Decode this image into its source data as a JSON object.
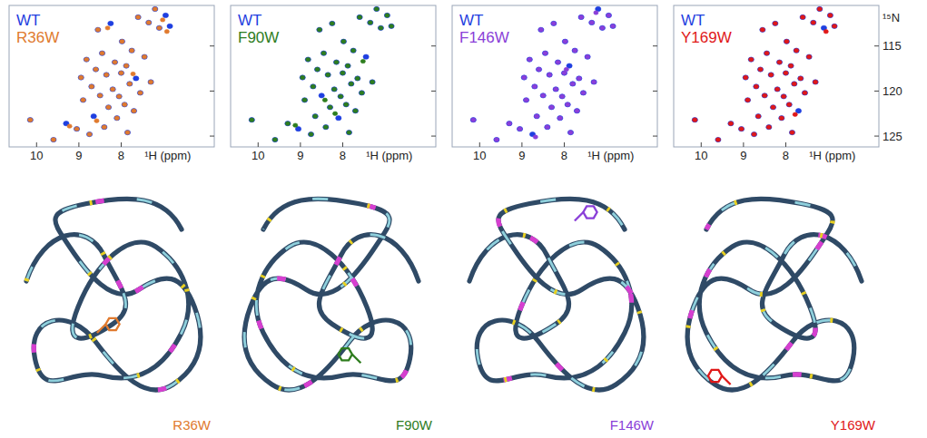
{
  "chart_data": [
    {
      "type": "scatter",
      "xlabel": "¹H (ppm)",
      "xlim": [
        10.65,
        5.8
      ],
      "ylim": [
        110.5,
        126.2
      ],
      "xticks": [
        10,
        9,
        8
      ],
      "yticks": [
        115,
        120,
        125
      ],
      "legend": "upper left",
      "tick_labels": "x",
      "marker": "circle",
      "series": [
        {
          "name": "WT",
          "color": "#1f3fe0",
          "x": [
            10.15,
            9.6,
            9.3,
            9.05,
            8.95,
            8.9,
            8.82,
            8.75,
            8.7,
            8.65,
            8.6,
            8.55,
            8.5,
            8.45,
            8.4,
            8.35,
            8.3,
            8.25,
            8.2,
            8.15,
            8.1,
            8.05,
            8.0,
            7.98,
            7.92,
            7.88,
            7.85,
            7.8,
            7.75,
            7.7,
            7.65,
            7.6,
            7.55,
            7.45,
            7.35,
            7.3,
            7.2,
            7.1,
            6.95,
            6.85
          ],
          "values": [
            123.2,
            125.4,
            123.6,
            124.2,
            118.5,
            121.0,
            116.5,
            124.8,
            119.5,
            122.8,
            117.6,
            113.2,
            120.5,
            115.8,
            124.0,
            118.2,
            121.8,
            112.5,
            119.8,
            116.8,
            123.0,
            120.6,
            118.0,
            114.5,
            121.5,
            117.2,
            124.6,
            119.2,
            115.5,
            122.2,
            118.6,
            111.8,
            120.2,
            116.2,
            112.4,
            119.0,
            110.9,
            113.0,
            111.6,
            112.8
          ]
        },
        {
          "name": "R36W",
          "color": "#e07a2e",
          "x": [
            10.15,
            9.6,
            9.22,
            9.05,
            8.95,
            8.9,
            8.82,
            8.75,
            8.7,
            8.58,
            8.6,
            8.55,
            8.5,
            8.45,
            8.4,
            8.35,
            8.3,
            8.32,
            8.2,
            8.15,
            8.1,
            8.05,
            8.0,
            7.98,
            7.92,
            7.88,
            7.85,
            7.8,
            7.75,
            7.7,
            7.72,
            7.6,
            7.55,
            7.45,
            7.35,
            7.3,
            7.2,
            7.1,
            7.02,
            6.92
          ],
          "values": [
            123.2,
            125.4,
            123.9,
            124.2,
            118.5,
            121.0,
            116.5,
            124.8,
            119.5,
            123.3,
            117.6,
            113.2,
            120.5,
            115.8,
            124.0,
            118.2,
            121.8,
            113.0,
            119.8,
            116.8,
            123.0,
            120.6,
            118.0,
            114.5,
            121.5,
            117.2,
            124.6,
            119.2,
            115.5,
            122.2,
            118.1,
            111.8,
            120.2,
            116.2,
            112.4,
            119.0,
            110.9,
            113.0,
            112.1,
            113.4
          ]
        }
      ]
    },
    {
      "type": "scatter",
      "xlabel": "¹H (ppm)",
      "xlim": [
        10.65,
        5.8
      ],
      "ylim": [
        110.5,
        126.2
      ],
      "xticks": [
        10,
        9,
        8
      ],
      "yticks": [
        115,
        120,
        125
      ],
      "legend": "upper left",
      "tick_labels": "x",
      "marker": "circle",
      "series": [
        {
          "name": "WT",
          "color": "#1f3fe0",
          "x": [
            10.15,
            9.6,
            9.3,
            9.05,
            8.95,
            8.9,
            8.82,
            8.75,
            8.7,
            8.65,
            8.6,
            8.55,
            8.5,
            8.45,
            8.4,
            8.35,
            8.3,
            8.25,
            8.2,
            8.15,
            8.1,
            8.05,
            8.0,
            7.98,
            7.92,
            7.88,
            7.85,
            7.8,
            7.75,
            7.7,
            7.65,
            7.6,
            7.55,
            7.45,
            7.35,
            7.3,
            7.2,
            7.1,
            6.95,
            6.85
          ],
          "values": [
            123.2,
            125.4,
            123.6,
            124.2,
            118.5,
            121.0,
            116.5,
            124.8,
            119.5,
            122.8,
            117.6,
            113.2,
            120.5,
            115.8,
            124.0,
            118.2,
            121.8,
            112.5,
            119.8,
            116.8,
            123.0,
            120.6,
            118.0,
            114.5,
            121.5,
            117.2,
            124.6,
            119.2,
            115.5,
            122.2,
            118.6,
            111.8,
            120.2,
            116.2,
            112.4,
            119.0,
            110.9,
            113.0,
            111.6,
            112.8
          ]
        },
        {
          "name": "F90W",
          "color": "#2e7d1e",
          "x": [
            10.15,
            9.6,
            9.3,
            9.12,
            8.95,
            8.9,
            8.82,
            8.75,
            8.7,
            8.65,
            8.6,
            8.55,
            8.42,
            8.45,
            8.4,
            8.35,
            8.3,
            8.25,
            8.2,
            8.15,
            8.18,
            8.05,
            8.0,
            7.98,
            7.92,
            7.88,
            7.85,
            7.8,
            7.75,
            7.7,
            7.65,
            7.6,
            7.55,
            7.52,
            7.35,
            7.3,
            7.2,
            7.1,
            6.95,
            6.85
          ],
          "values": [
            123.2,
            125.4,
            123.6,
            123.8,
            118.5,
            121.0,
            116.5,
            124.8,
            119.5,
            122.8,
            117.6,
            113.2,
            121.0,
            115.8,
            124.0,
            118.2,
            121.8,
            112.5,
            119.8,
            116.8,
            122.5,
            120.6,
            118.0,
            114.5,
            121.5,
            117.2,
            124.6,
            119.2,
            115.5,
            122.2,
            118.6,
            111.8,
            120.2,
            116.7,
            112.4,
            119.0,
            110.9,
            113.0,
            111.6,
            112.8
          ]
        }
      ]
    },
    {
      "type": "scatter",
      "xlabel": "¹H (ppm)",
      "xlim": [
        10.65,
        5.8
      ],
      "ylim": [
        110.5,
        126.2
      ],
      "xticks": [
        10,
        9,
        8
      ],
      "yticks": [
        115,
        120,
        125
      ],
      "legend": "upper left",
      "tick_labels": "x",
      "marker": "circle",
      "series": [
        {
          "name": "WT",
          "color": "#1f3fe0",
          "x": [
            10.15,
            9.6,
            9.3,
            9.05,
            8.95,
            8.9,
            8.82,
            8.75,
            8.7,
            8.65,
            8.6,
            8.55,
            8.5,
            8.45,
            8.4,
            8.35,
            8.3,
            8.25,
            8.2,
            8.15,
            8.1,
            8.05,
            8.0,
            7.98,
            7.92,
            7.88,
            7.85,
            7.8,
            7.75,
            7.7,
            7.65,
            7.6,
            7.55,
            7.45,
            7.35,
            7.3,
            7.2,
            7.1,
            6.95,
            6.85
          ],
          "values": [
            123.2,
            125.4,
            123.6,
            124.2,
            118.5,
            121.0,
            116.5,
            124.8,
            119.5,
            122.8,
            117.6,
            113.2,
            120.5,
            115.8,
            124.0,
            118.2,
            121.8,
            112.5,
            119.8,
            116.8,
            123.0,
            120.6,
            118.0,
            114.5,
            121.5,
            117.2,
            124.6,
            119.2,
            115.5,
            122.2,
            118.6,
            111.8,
            120.2,
            116.2,
            112.4,
            119.0,
            110.9,
            113.0,
            111.6,
            112.8
          ]
        },
        {
          "name": "F146W",
          "color": "#8a3fd8",
          "x": [
            10.15,
            9.6,
            9.3,
            9.05,
            8.95,
            8.9,
            8.82,
            8.68,
            8.7,
            8.65,
            8.6,
            8.55,
            8.5,
            8.45,
            8.4,
            8.35,
            8.3,
            8.25,
            8.2,
            8.15,
            8.1,
            8.05,
            8.0,
            7.98,
            7.92,
            7.95,
            7.85,
            7.8,
            7.75,
            7.7,
            7.65,
            7.6,
            7.55,
            7.45,
            7.35,
            7.3,
            7.25,
            7.1,
            6.95,
            6.85
          ],
          "values": [
            123.2,
            125.4,
            123.6,
            124.2,
            118.5,
            121.0,
            116.5,
            125.1,
            119.5,
            122.8,
            117.6,
            113.2,
            120.5,
            115.8,
            124.0,
            118.2,
            121.8,
            112.5,
            119.8,
            116.8,
            123.0,
            120.6,
            118.0,
            114.5,
            121.5,
            117.6,
            124.6,
            119.2,
            115.5,
            122.2,
            118.6,
            111.8,
            120.2,
            116.2,
            112.4,
            119.0,
            111.3,
            113.0,
            111.6,
            112.8
          ]
        }
      ]
    },
    {
      "type": "scatter",
      "xlabel": "¹H (ppm)",
      "ylabel": "¹⁵N",
      "xlim": [
        10.65,
        5.8
      ],
      "ylim": [
        110.5,
        126.2
      ],
      "xticks": [
        10,
        9,
        8
      ],
      "yticks": [
        115,
        120,
        125
      ],
      "legend": "upper left",
      "marker": "circle",
      "series": [
        {
          "name": "WT",
          "color": "#1f3fe0",
          "x": [
            10.15,
            9.6,
            9.3,
            9.05,
            8.95,
            8.9,
            8.82,
            8.75,
            8.7,
            8.65,
            8.6,
            8.55,
            8.5,
            8.45,
            8.4,
            8.35,
            8.3,
            8.25,
            8.2,
            8.15,
            8.1,
            8.05,
            8.0,
            7.98,
            7.92,
            7.88,
            7.85,
            7.8,
            7.75,
            7.7,
            7.65,
            7.6,
            7.55,
            7.45,
            7.35,
            7.3,
            7.2,
            7.1,
            6.95,
            6.85
          ],
          "values": [
            123.2,
            125.4,
            123.6,
            124.2,
            118.5,
            121.0,
            116.5,
            124.8,
            119.5,
            122.8,
            117.6,
            113.2,
            120.5,
            115.8,
            124.0,
            118.2,
            121.8,
            112.5,
            119.8,
            116.8,
            123.0,
            120.6,
            118.0,
            114.5,
            121.5,
            117.2,
            124.6,
            119.2,
            115.5,
            122.2,
            118.6,
            111.8,
            120.2,
            116.2,
            112.4,
            119.0,
            110.9,
            113.0,
            111.6,
            112.8
          ]
        },
        {
          "name": "Y169W",
          "color": "#e01818",
          "x": [
            10.15,
            9.6,
            9.3,
            9.05,
            8.95,
            8.9,
            8.82,
            8.75,
            8.7,
            8.65,
            8.6,
            8.55,
            8.5,
            8.45,
            8.4,
            8.35,
            8.3,
            8.25,
            8.2,
            8.15,
            8.1,
            8.05,
            8.0,
            7.98,
            7.92,
            7.88,
            7.85,
            7.8,
            7.75,
            7.78,
            7.65,
            7.6,
            7.55,
            7.45,
            7.35,
            7.3,
            7.2,
            7.05,
            6.95,
            6.85
          ],
          "values": [
            123.2,
            125.4,
            123.6,
            124.2,
            118.5,
            121.0,
            116.5,
            124.8,
            119.5,
            122.8,
            117.6,
            113.2,
            120.5,
            115.8,
            124.0,
            118.2,
            121.8,
            112.5,
            119.8,
            116.8,
            123.0,
            120.6,
            118.0,
            114.5,
            121.5,
            117.2,
            124.6,
            119.2,
            115.5,
            122.6,
            118.6,
            111.8,
            120.2,
            116.2,
            112.4,
            119.0,
            110.9,
            113.4,
            111.6,
            112.8
          ]
        }
      ]
    }
  ]
}
